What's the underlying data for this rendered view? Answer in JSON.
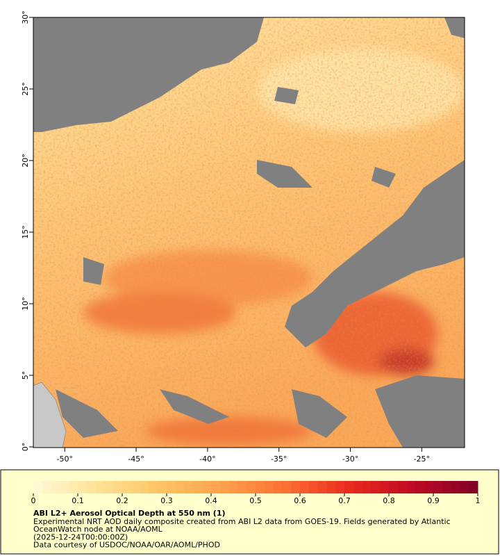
{
  "map": {
    "title": "ABI L2+ Aerosol Optical Depth at 550 nm (1)",
    "caption": [
      "Experimental NRT AOD daily composite created from ABI L2 data from GOES-19. Fields generated by Atlantic",
      "OceanWatch node at NOAA/AOML",
      "(2025-12-24T00:00:00Z)",
      "Data courtesy of USDOC/NOAA/OAR/AOML/PHOD"
    ],
    "xlim": [
      -52.2,
      -22
    ],
    "ylim": [
      0,
      30
    ],
    "xticks": [
      {
        "value": -50,
        "label": "-50°"
      },
      {
        "value": -45,
        "label": "-45°"
      },
      {
        "value": -40,
        "label": "-40°"
      },
      {
        "value": -35,
        "label": "-35°"
      },
      {
        "value": -30,
        "label": "-30°"
      },
      {
        "value": -25,
        "label": "-25°"
      }
    ],
    "yticks": [
      {
        "value": 0,
        "label": "0°"
      },
      {
        "value": 5,
        "label": "5°"
      },
      {
        "value": 10,
        "label": "10°"
      },
      {
        "value": 15,
        "label": "15°"
      },
      {
        "value": 20,
        "label": "20°"
      },
      {
        "value": 25,
        "label": "25°"
      },
      {
        "value": 30,
        "label": "30°"
      }
    ],
    "colorbar": {
      "lim": [
        0,
        1
      ],
      "ticks": [
        0,
        0.1,
        0.2,
        0.3,
        0.4,
        0.5,
        0.6,
        0.7,
        0.8,
        0.9,
        1
      ]
    }
  }
}
